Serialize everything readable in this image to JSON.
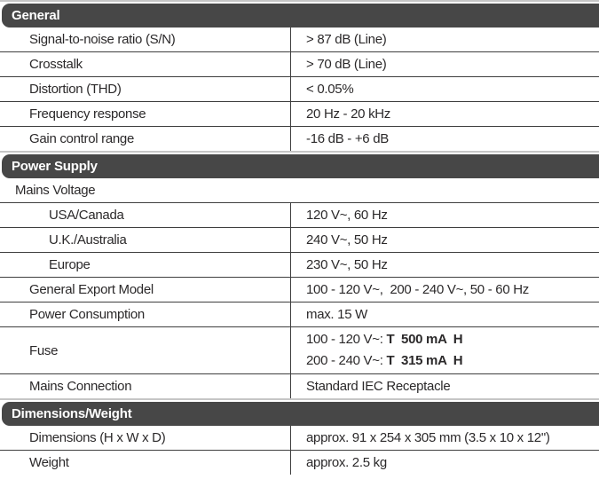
{
  "colors": {
    "header_bg": "#474747",
    "header_text": "#ffffff",
    "line": "#3e3e3e",
    "edge": "#c6c6c6",
    "text": "#2b292a",
    "bg": "#ffffff"
  },
  "sections": [
    {
      "title": "General",
      "rows": [
        {
          "label": "Signal-to-noise ratio (S/N)",
          "value": "> 87 dB (Line)",
          "indent": 1
        },
        {
          "label": "Crosstalk",
          "value": "> 70 dB (Line)",
          "indent": 1
        },
        {
          "label": "Distortion (THD)",
          "value": "< 0.05%",
          "indent": 1
        },
        {
          "label": "Frequency response",
          "value": "20 Hz - 20 kHz",
          "indent": 1
        },
        {
          "label": "Gain control range",
          "value": "-16 dB - +6 dB",
          "indent": 1
        }
      ]
    },
    {
      "title": "Power Supply",
      "rows": [
        {
          "label": "Mains Voltage",
          "indent": 0,
          "full": true
        },
        {
          "label": "USA/Canada",
          "value": "120 V~, 60 Hz",
          "indent": 2
        },
        {
          "label": "U.K./Australia",
          "value": "240 V~, 50 Hz",
          "indent": 2
        },
        {
          "label": "Europe",
          "value": "230 V~, 50 Hz",
          "indent": 2
        },
        {
          "label": "General Export Model",
          "value": "100 - 120 V~,  200 - 240 V~, 50 - 60 Hz",
          "indent": 1
        },
        {
          "label": "Power Consumption",
          "value": "max. 15 W",
          "indent": 1
        },
        {
          "label": "Fuse",
          "indent": 1,
          "tall": true,
          "value_lines": [
            {
              "prefix": "100 - 120 V~: ",
              "bold": "T  500 mA  H"
            },
            {
              "prefix": "200 - 240 V~: ",
              "bold": "T  315 mA  H"
            }
          ]
        },
        {
          "label": "Mains Connection",
          "value": "Standard IEC Receptacle",
          "indent": 1
        }
      ]
    },
    {
      "title": "Dimensions/Weight",
      "rows": [
        {
          "label": "Dimensions (H x W x D)",
          "value": "approx. 91 x 254 x 305 mm (3.5 x 10 x 12\")",
          "indent": 1
        },
        {
          "label": "Weight",
          "value": "approx. 2.5 kg",
          "indent": 1
        }
      ]
    }
  ]
}
